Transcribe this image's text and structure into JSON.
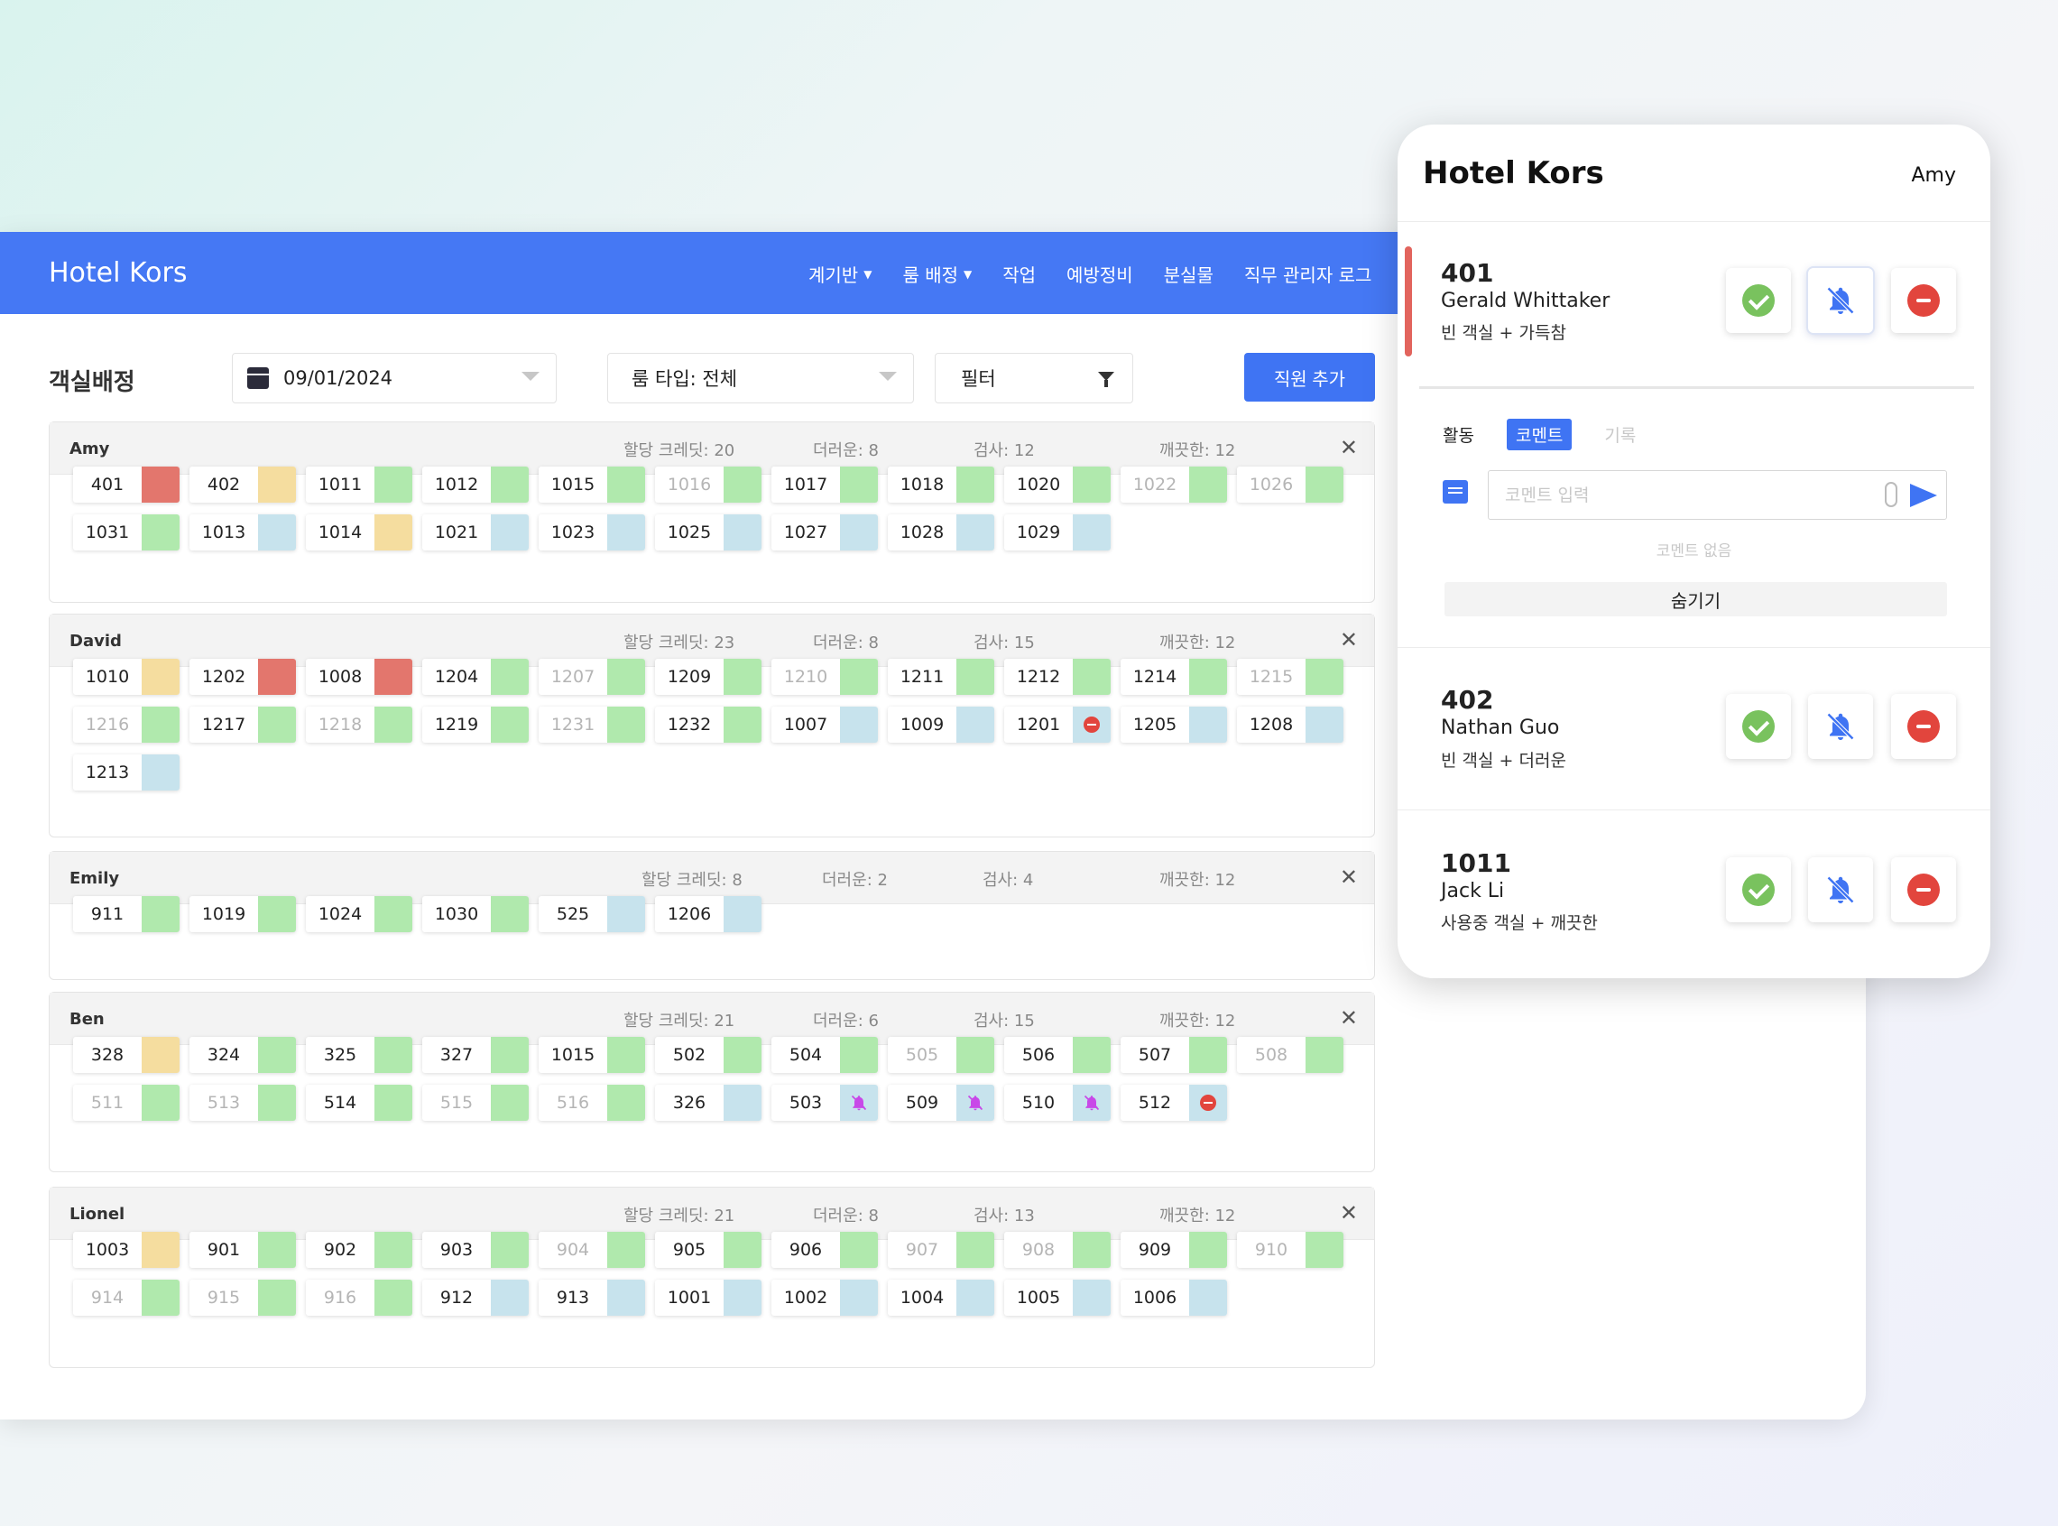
{
  "app": {
    "brand": "Hotel Kors"
  },
  "nav": {
    "items": [
      {
        "label": "계기반",
        "dropdown": true
      },
      {
        "label": "룸 배정",
        "dropdown": true
      },
      {
        "label": "작업",
        "dropdown": false
      },
      {
        "label": "예방정비",
        "dropdown": false
      },
      {
        "label": "분실물",
        "dropdown": false
      },
      {
        "label": "직무 관리자 로그",
        "dropdown": false
      }
    ]
  },
  "toolbar": {
    "title": "객실배정",
    "date": "09/01/2024",
    "room_type": "룸 타입: 전체",
    "filter": "필터",
    "add_staff": "직원 추가"
  },
  "colors": {
    "dirty": "#e3766d",
    "inspect": "#f5dd9f",
    "clean": "#b0e9ad",
    "occupied": "#c7e3ed",
    "dnd": "#e2453d",
    "bell": "#c848e8",
    "accent": "#4578f4"
  },
  "labels": {
    "credits": "할당 크레딧",
    "dirty": "더러운",
    "inspect": "검사",
    "clean": "깨끗한"
  },
  "staff": [
    {
      "name": "Amy",
      "credits": "20",
      "dirty": "8",
      "inspect": "12",
      "clean": "12",
      "rooms": [
        {
          "n": "401",
          "s": "dirty"
        },
        {
          "n": "402",
          "s": "inspect"
        },
        {
          "n": "1011",
          "s": "clean"
        },
        {
          "n": "1012",
          "s": "clean"
        },
        {
          "n": "1015",
          "s": "clean"
        },
        {
          "n": "1016",
          "s": "clean",
          "dim": true
        },
        {
          "n": "1017",
          "s": "clean"
        },
        {
          "n": "1018",
          "s": "clean"
        },
        {
          "n": "1020",
          "s": "clean"
        },
        {
          "n": "1022",
          "s": "clean",
          "dim": true
        },
        {
          "n": "1026",
          "s": "clean",
          "dim": true
        },
        {
          "n": "1031",
          "s": "clean"
        },
        {
          "n": "1013",
          "s": "occupied"
        },
        {
          "n": "1014",
          "s": "inspect"
        },
        {
          "n": "1021",
          "s": "occupied"
        },
        {
          "n": "1023",
          "s": "occupied"
        },
        {
          "n": "1025",
          "s": "occupied"
        },
        {
          "n": "1027",
          "s": "occupied"
        },
        {
          "n": "1028",
          "s": "occupied"
        },
        {
          "n": "1029",
          "s": "occupied"
        }
      ]
    },
    {
      "name": "David",
      "credits": "23",
      "dirty": "8",
      "inspect": "15",
      "clean": "12",
      "rooms": [
        {
          "n": "1010",
          "s": "inspect"
        },
        {
          "n": "1202",
          "s": "dirty"
        },
        {
          "n": "1008",
          "s": "dirty"
        },
        {
          "n": "1204",
          "s": "clean"
        },
        {
          "n": "1207",
          "s": "clean",
          "dim": true
        },
        {
          "n": "1209",
          "s": "clean"
        },
        {
          "n": "1210",
          "s": "clean",
          "dim": true
        },
        {
          "n": "1211",
          "s": "clean"
        },
        {
          "n": "1212",
          "s": "clean"
        },
        {
          "n": "1214",
          "s": "clean"
        },
        {
          "n": "1215",
          "s": "clean",
          "dim": true
        },
        {
          "n": "1216",
          "s": "clean",
          "dim": true
        },
        {
          "n": "1217",
          "s": "clean"
        },
        {
          "n": "1218",
          "s": "clean",
          "dim": true
        },
        {
          "n": "1219",
          "s": "clean"
        },
        {
          "n": "1231",
          "s": "clean",
          "dim": true
        },
        {
          "n": "1232",
          "s": "clean"
        },
        {
          "n": "1007",
          "s": "occupied"
        },
        {
          "n": "1009",
          "s": "occupied"
        },
        {
          "n": "1201",
          "s": "occupied",
          "icon": "dnd"
        },
        {
          "n": "1205",
          "s": "occupied"
        },
        {
          "n": "1208",
          "s": "occupied"
        },
        {
          "n": "1213",
          "s": "occupied"
        }
      ]
    },
    {
      "name": "Emily",
      "credits": "8",
      "dirty": "2",
      "inspect": "4",
      "clean": "12",
      "rooms": [
        {
          "n": "911",
          "s": "clean"
        },
        {
          "n": "1019",
          "s": "clean"
        },
        {
          "n": "1024",
          "s": "clean"
        },
        {
          "n": "1030",
          "s": "clean"
        },
        {
          "n": "525",
          "s": "occupied"
        },
        {
          "n": "1206",
          "s": "occupied"
        }
      ]
    },
    {
      "name": "Ben",
      "credits": "21",
      "dirty": "6",
      "inspect": "15",
      "clean": "12",
      "rooms": [
        {
          "n": "328",
          "s": "inspect"
        },
        {
          "n": "324",
          "s": "clean"
        },
        {
          "n": "325",
          "s": "clean"
        },
        {
          "n": "327",
          "s": "clean"
        },
        {
          "n": "1015",
          "s": "clean"
        },
        {
          "n": "502",
          "s": "clean"
        },
        {
          "n": "504",
          "s": "clean"
        },
        {
          "n": "505",
          "s": "clean",
          "dim": true
        },
        {
          "n": "506",
          "s": "clean"
        },
        {
          "n": "507",
          "s": "clean"
        },
        {
          "n": "508",
          "s": "clean",
          "dim": true
        },
        {
          "n": "511",
          "s": "clean",
          "dim": true
        },
        {
          "n": "513",
          "s": "clean",
          "dim": true
        },
        {
          "n": "514",
          "s": "clean"
        },
        {
          "n": "515",
          "s": "clean",
          "dim": true
        },
        {
          "n": "516",
          "s": "clean",
          "dim": true
        },
        {
          "n": "326",
          "s": "occupied"
        },
        {
          "n": "503",
          "s": "occupied",
          "icon": "bell"
        },
        {
          "n": "509",
          "s": "occupied",
          "icon": "bell"
        },
        {
          "n": "510",
          "s": "occupied",
          "icon": "bell"
        },
        {
          "n": "512",
          "s": "occupied",
          "icon": "dnd"
        }
      ]
    },
    {
      "name": "Lionel",
      "credits": "21",
      "dirty": "8",
      "inspect": "13",
      "clean": "12",
      "rooms": [
        {
          "n": "1003",
          "s": "inspect"
        },
        {
          "n": "901",
          "s": "clean"
        },
        {
          "n": "902",
          "s": "clean"
        },
        {
          "n": "903",
          "s": "clean"
        },
        {
          "n": "904",
          "s": "clean",
          "dim": true
        },
        {
          "n": "905",
          "s": "clean"
        },
        {
          "n": "906",
          "s": "clean"
        },
        {
          "n": "907",
          "s": "clean",
          "dim": true
        },
        {
          "n": "908",
          "s": "clean",
          "dim": true
        },
        {
          "n": "909",
          "s": "clean"
        },
        {
          "n": "910",
          "s": "clean",
          "dim": true
        },
        {
          "n": "914",
          "s": "clean",
          "dim": true
        },
        {
          "n": "915",
          "s": "clean",
          "dim": true
        },
        {
          "n": "916",
          "s": "clean",
          "dim": true
        },
        {
          "n": "912",
          "s": "occupied"
        },
        {
          "n": "913",
          "s": "occupied"
        },
        {
          "n": "1001",
          "s": "occupied"
        },
        {
          "n": "1002",
          "s": "occupied"
        },
        {
          "n": "1004",
          "s": "occupied"
        },
        {
          "n": "1005",
          "s": "occupied"
        },
        {
          "n": "1006",
          "s": "occupied"
        }
      ]
    }
  ],
  "panel": {
    "title": "Hotel Kors",
    "user": "Amy",
    "tasks": [
      {
        "room": "401",
        "guest": "Gerald Whittaker",
        "status": "빈 객실 + 가득참"
      },
      {
        "room": "402",
        "guest": "Nathan Guo",
        "status": "빈 객실 + 더러운"
      },
      {
        "room": "1011",
        "guest": "Jack Li",
        "status": "사용중 객실 + 깨끗한"
      }
    ],
    "tabs": {
      "activity": "활동",
      "comments": "코멘트",
      "history": "기록"
    },
    "comment_placeholder": "코멘트 입력",
    "no_comments": "코멘트 없음",
    "hide": "숨기기"
  }
}
